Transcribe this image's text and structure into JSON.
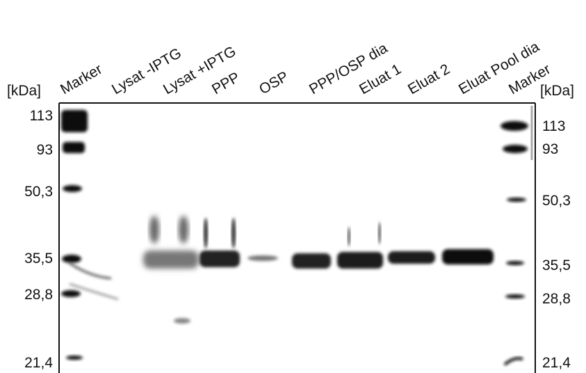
{
  "blot": {
    "lanes": [
      "Marker",
      "Lysat -IPTG",
      "Lysat +IPTG",
      "PPP",
      "OSP",
      "PPP/OSP dia",
      "Eluat 1",
      "Eluat 2",
      "Eluat Pool dia",
      "Marker"
    ],
    "left_axis": {
      "unit": "[kDa]",
      "markers": [
        "113",
        "93",
        "50,3",
        "35,5",
        "28,8",
        "21,4"
      ]
    },
    "right_axis": {
      "unit": "[kDa]",
      "markers": [
        "113",
        "93",
        "50,3",
        "35,5",
        "28,8",
        "21,4"
      ]
    }
  }
}
